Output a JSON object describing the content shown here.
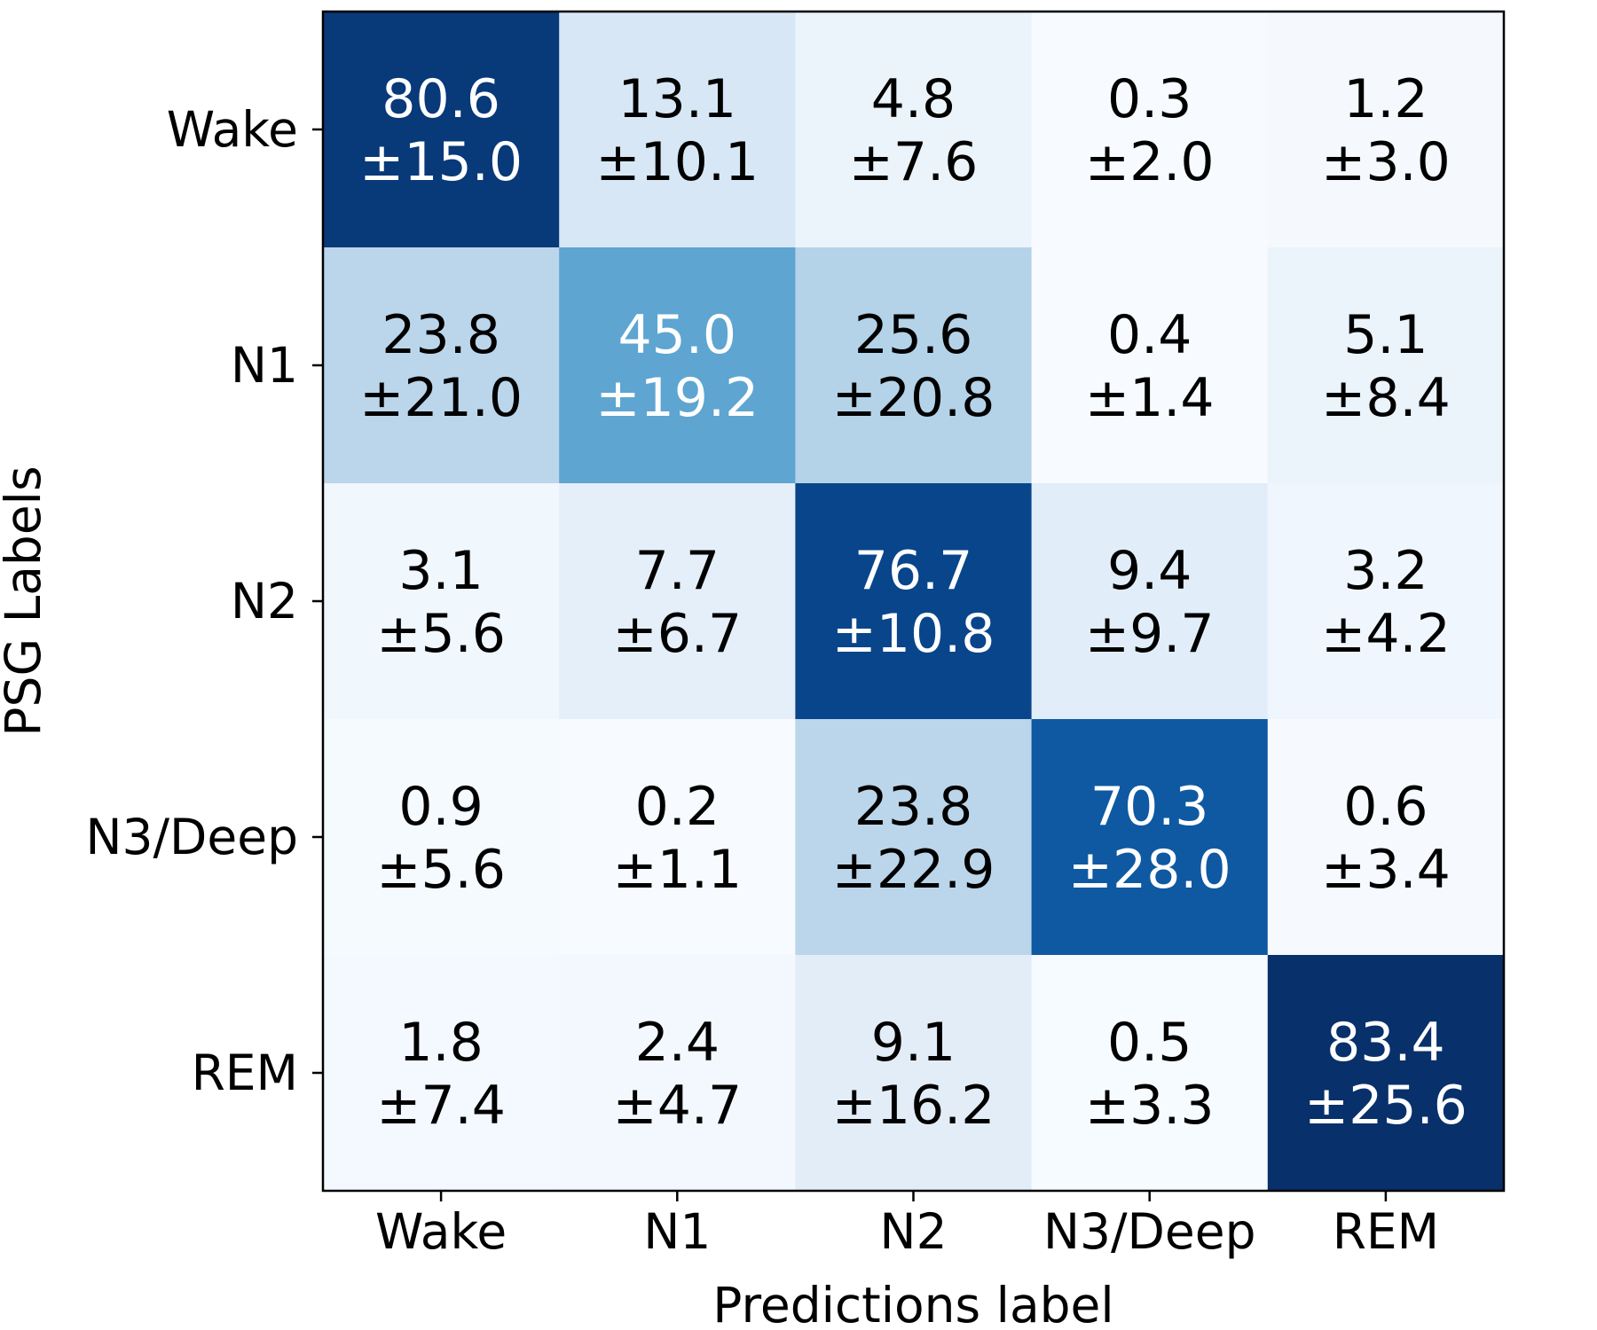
{
  "chart_data": {
    "type": "heatmap",
    "colormap": "Blues",
    "x_categories": [
      "Wake",
      "N1",
      "N2",
      "N3/Deep",
      "REM"
    ],
    "y_categories": [
      "Wake",
      "N1",
      "N2",
      "N3/Deep",
      "REM"
    ],
    "xlabel": "Predictions label",
    "ylabel": "PSG Labels",
    "values": [
      [
        80.6,
        13.1,
        4.8,
        0.3,
        1.2
      ],
      [
        23.8,
        45.0,
        25.6,
        0.4,
        5.1
      ],
      [
        3.1,
        7.7,
        76.7,
        9.4,
        3.2
      ],
      [
        0.9,
        0.2,
        23.8,
        70.3,
        0.6
      ],
      [
        1.8,
        2.4,
        9.1,
        0.5,
        83.4
      ]
    ],
    "std": [
      [
        15.0,
        10.1,
        7.6,
        2.0,
        3.0
      ],
      [
        21.0,
        19.2,
        20.8,
        1.4,
        8.4
      ],
      [
        5.6,
        6.7,
        10.8,
        9.7,
        4.2
      ],
      [
        5.6,
        1.1,
        22.9,
        28.0,
        3.4
      ],
      [
        7.4,
        4.7,
        16.2,
        3.3,
        25.6
      ]
    ],
    "value_labels": [
      [
        "80.6",
        "13.1",
        "4.8",
        "0.3",
        "1.2"
      ],
      [
        "23.8",
        "45.0",
        "25.6",
        "0.4",
        "5.1"
      ],
      [
        "3.1",
        "7.7",
        "76.7",
        "9.4",
        "3.2"
      ],
      [
        "0.9",
        "0.2",
        "23.8",
        "70.3",
        "0.6"
      ],
      [
        "1.8",
        "2.4",
        "9.1",
        "0.5",
        "83.4"
      ]
    ],
    "std_labels": [
      [
        "±15.0",
        "±10.1",
        "±7.6",
        "±2.0",
        "±3.0"
      ],
      [
        "±21.0",
        "±19.2",
        "±20.8",
        "±1.4",
        "±8.4"
      ],
      [
        "±5.6",
        "±6.7",
        "±10.8",
        "±9.7",
        "±4.2"
      ],
      [
        "±5.6",
        "±1.1",
        "±22.9",
        "±28.0",
        "±3.4"
      ],
      [
        "±7.4",
        "±4.7",
        "±16.2",
        "±3.3",
        "±25.6"
      ]
    ],
    "text_colors": {
      "dark_text": "#000000",
      "light_text": "#ffffff"
    },
    "colorbar": false,
    "grid": false
  }
}
